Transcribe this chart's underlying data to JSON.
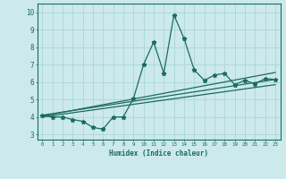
{
  "xlabel": "Humidex (Indice chaleur)",
  "background_color": "#cce9eb",
  "grid_color": "#aad6da",
  "line_color": "#1a6b60",
  "xlim": [
    -0.5,
    23.5
  ],
  "ylim": [
    2.7,
    10.5
  ],
  "xticks": [
    0,
    1,
    2,
    3,
    4,
    5,
    6,
    7,
    8,
    9,
    10,
    11,
    12,
    13,
    14,
    15,
    16,
    17,
    18,
    19,
    20,
    21,
    22,
    23
  ],
  "yticks": [
    3,
    4,
    5,
    6,
    7,
    8,
    9,
    10
  ],
  "zigzag_x": [
    0,
    1,
    2,
    3,
    4,
    5,
    6,
    7,
    8,
    9,
    10,
    11,
    12,
    13,
    14,
    15,
    16,
    17,
    18,
    19,
    20,
    21,
    22,
    23
  ],
  "zigzag_y": [
    4.1,
    4.0,
    4.0,
    3.85,
    3.75,
    3.4,
    3.3,
    4.0,
    4.0,
    5.05,
    7.0,
    8.3,
    6.5,
    9.85,
    8.5,
    6.7,
    6.1,
    6.4,
    6.5,
    5.85,
    6.1,
    5.9,
    6.2,
    6.15
  ],
  "trend1_x": [
    0,
    23
  ],
  "trend1_y": [
    4.1,
    6.15
  ],
  "trend2_x": [
    0,
    23
  ],
  "trend2_y": [
    4.05,
    6.55
  ],
  "trend3_x": [
    0,
    23
  ],
  "trend3_y": [
    4.0,
    5.85
  ]
}
